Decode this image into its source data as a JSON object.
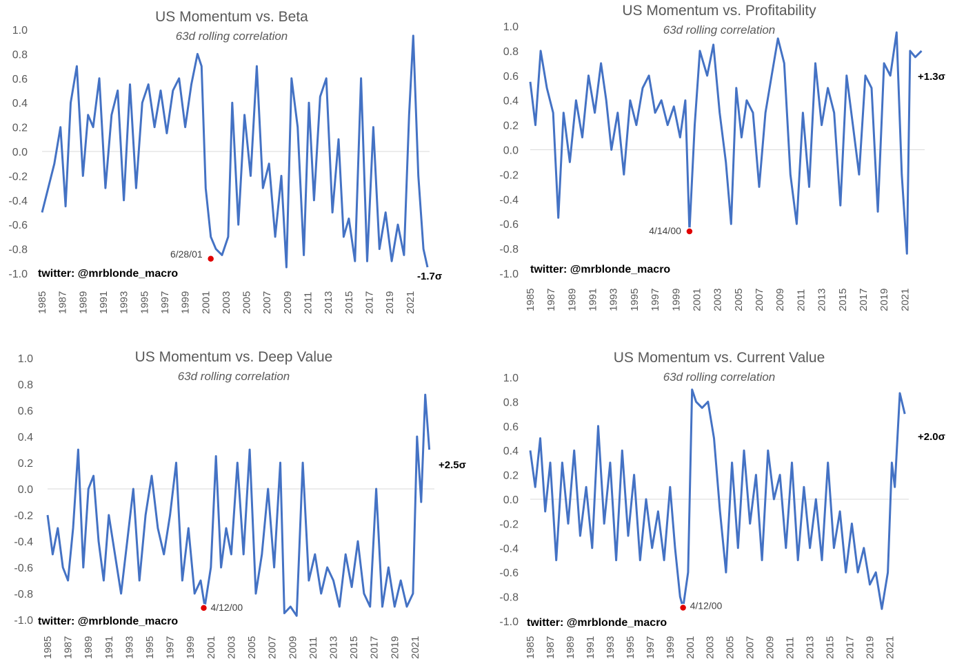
{
  "chart_data": [
    {
      "type": "line",
      "title": "US Momentum vs. Beta",
      "subtitle": "63d rolling correlation",
      "ylim": [
        -1.0,
        1.0
      ],
      "yticks": [
        "1.0",
        "0.8",
        "0.6",
        "0.4",
        "0.2",
        "0.0",
        "-0.2",
        "-0.4",
        "-0.6",
        "-0.8",
        "-1.0"
      ],
      "xlim": [
        1985,
        2022.9
      ],
      "xticks": [
        "1985",
        "1987",
        "1989",
        "1991",
        "1993",
        "1995",
        "1997",
        "1999",
        "2001",
        "2003",
        "2005",
        "2007",
        "2009",
        "2011",
        "2013",
        "2015",
        "2017",
        "2019",
        "2021"
      ],
      "series": [
        {
          "x": [
            1985,
            1985.6,
            1986.2,
            1986.8,
            1987.3,
            1987.8,
            1988.4,
            1989,
            1989.5,
            1990,
            1990.6,
            1991.2,
            1991.8,
            1992.4,
            1993,
            1993.6,
            1994.2,
            1994.8,
            1995.4,
            1996,
            1996.6,
            1997.2,
            1997.8,
            1998.4,
            1999,
            1999.6,
            2000.2,
            2000.6,
            2001,
            2001.5,
            2002,
            2002.6,
            2003.2,
            2003.6,
            2004.2,
            2004.8,
            2005.4,
            2006,
            2006.6,
            2007.2,
            2007.8,
            2008.4,
            2008.9,
            2009.4,
            2010,
            2010.6,
            2011.1,
            2011.6,
            2012.2,
            2012.8,
            2013.4,
            2014,
            2014.5,
            2015,
            2015.6,
            2016.2,
            2016.8,
            2017.4,
            2018,
            2018.6,
            2019.2,
            2019.8,
            2020.4,
            2020.9,
            2021.3,
            2021.8,
            2022.3,
            2022.7
          ],
          "y": [
            -0.5,
            -0.3,
            -0.1,
            0.2,
            -0.45,
            0.4,
            0.7,
            -0.2,
            0.3,
            0.2,
            0.6,
            -0.3,
            0.3,
            0.5,
            -0.4,
            0.55,
            -0.3,
            0.4,
            0.55,
            0.2,
            0.5,
            0.15,
            0.5,
            0.6,
            0.2,
            0.55,
            0.8,
            0.7,
            -0.3,
            -0.7,
            -0.8,
            -0.85,
            -0.7,
            0.4,
            -0.6,
            0.3,
            -0.2,
            0.7,
            -0.3,
            -0.1,
            -0.7,
            -0.2,
            -0.95,
            0.6,
            0.2,
            -0.85,
            0.4,
            -0.4,
            0.45,
            0.6,
            -0.5,
            0.1,
            -0.7,
            -0.55,
            -0.9,
            0.6,
            -0.9,
            0.2,
            -0.8,
            -0.5,
            -0.9,
            -0.6,
            -0.85,
            0.3,
            0.95,
            -0.2,
            -0.8,
            -0.95
          ],
          "marker": {
            "x": 2001.5,
            "y": -0.88,
            "label": "6/28/01"
          }
        }
      ],
      "sigma": "-1.7σ",
      "twitter": "twitter: @mrblonde_macro"
    },
    {
      "type": "line",
      "title": "US Momentum vs. Profitability",
      "subtitle": "63d rolling correlation",
      "ylim": [
        -1.0,
        1.0
      ],
      "yticks": [
        "1.0",
        "0.8",
        "0.6",
        "0.4",
        "0.2",
        "0.0",
        "-0.2",
        "-0.4",
        "-0.6",
        "-0.8",
        "-1.0"
      ],
      "xlim": [
        1985,
        2022.9
      ],
      "xticks": [
        "1985",
        "1987",
        "1989",
        "1991",
        "1993",
        "1995",
        "1997",
        "1999",
        "2001",
        "2003",
        "2005",
        "2007",
        "2009",
        "2011",
        "2013",
        "2015",
        "2017",
        "2019",
        "2021"
      ],
      "series": [
        {
          "x": [
            1985,
            1985.5,
            1986,
            1986.6,
            1987.2,
            1987.7,
            1988.2,
            1988.8,
            1989.4,
            1990,
            1990.6,
            1991.2,
            1991.8,
            1992.3,
            1992.8,
            1993.4,
            1994,
            1994.6,
            1995.2,
            1995.8,
            1996.4,
            1997,
            1997.6,
            1998.2,
            1998.8,
            1999.4,
            1999.9,
            2000.3,
            2000.8,
            2001.3,
            2002,
            2002.6,
            2003.2,
            2003.8,
            2004.3,
            2004.8,
            2005.3,
            2005.8,
            2006.4,
            2007,
            2007.6,
            2008.2,
            2008.8,
            2009.4,
            2010,
            2010.6,
            2011.2,
            2011.8,
            2012.4,
            2013,
            2013.6,
            2014.2,
            2014.8,
            2015.4,
            2016,
            2016.6,
            2017.2,
            2017.8,
            2018.4,
            2019,
            2019.6,
            2020.2,
            2020.7,
            2021.2,
            2021.5,
            2022,
            2022.6
          ],
          "y": [
            0.55,
            0.2,
            0.8,
            0.5,
            0.3,
            -0.55,
            0.3,
            -0.1,
            0.4,
            0.1,
            0.6,
            0.3,
            0.7,
            0.4,
            0.0,
            0.3,
            -0.2,
            0.4,
            0.2,
            0.5,
            0.6,
            0.3,
            0.4,
            0.2,
            0.35,
            0.1,
            0.4,
            -0.66,
            0.2,
            0.8,
            0.6,
            0.85,
            0.3,
            -0.1,
            -0.6,
            0.5,
            0.1,
            0.4,
            0.3,
            -0.3,
            0.3,
            0.6,
            0.9,
            0.7,
            -0.2,
            -0.6,
            0.3,
            -0.3,
            0.7,
            0.2,
            0.5,
            0.3,
            -0.45,
            0.6,
            0.2,
            -0.2,
            0.6,
            0.5,
            -0.5,
            0.7,
            0.6,
            0.95,
            -0.2,
            -0.84,
            0.8,
            0.75,
            0.8
          ],
          "marker": {
            "x": 2000.3,
            "y": -0.66,
            "label": "4/14/00"
          }
        }
      ],
      "sigma": "+1.3σ",
      "twitter": "twitter: @mrblonde_macro"
    },
    {
      "type": "line",
      "title": "US Momentum vs. Deep Value",
      "subtitle": "63d rolling correlation",
      "ylim": [
        -1.0,
        1.0
      ],
      "yticks": [
        "1.0",
        "0.8",
        "0.6",
        "0.4",
        "0.2",
        "0.0",
        "-0.2",
        "-0.4",
        "-0.6",
        "-0.8",
        "-1.0"
      ],
      "xlim": [
        1985,
        2022.9
      ],
      "xticks": [
        "1985",
        "1987",
        "1989",
        "1991",
        "1993",
        "1995",
        "1997",
        "1999",
        "2001",
        "2003",
        "2005",
        "2007",
        "2009",
        "2011",
        "2013",
        "2015",
        "2017",
        "2019",
        "2021"
      ],
      "series": [
        {
          "x": [
            1985,
            1985.5,
            1986,
            1986.5,
            1987,
            1987.5,
            1988,
            1988.5,
            1989,
            1989.5,
            1990,
            1990.5,
            1991,
            1991.6,
            1992.2,
            1992.8,
            1993.4,
            1994,
            1994.6,
            1995.2,
            1995.8,
            1996.4,
            1997,
            1997.6,
            1998.2,
            1998.8,
            1999.4,
            2000,
            2000.4,
            2001,
            2001.5,
            2002,
            2002.5,
            2003,
            2003.6,
            2004.2,
            2004.8,
            2005.4,
            2006,
            2006.6,
            2007.2,
            2007.8,
            2008.2,
            2008.8,
            2009.4,
            2010,
            2010.6,
            2011.2,
            2011.8,
            2012.4,
            2013,
            2013.6,
            2014.2,
            2014.8,
            2015.4,
            2016,
            2016.6,
            2017.2,
            2017.8,
            2018.4,
            2019,
            2019.6,
            2020.2,
            2020.8,
            2021.2,
            2021.6,
            2022,
            2022.4
          ],
          "y": [
            -0.2,
            -0.5,
            -0.3,
            -0.6,
            -0.7,
            -0.3,
            0.3,
            -0.6,
            0.0,
            0.1,
            -0.4,
            -0.7,
            -0.2,
            -0.5,
            -0.8,
            -0.4,
            0.0,
            -0.7,
            -0.2,
            0.1,
            -0.3,
            -0.5,
            -0.2,
            0.2,
            -0.7,
            -0.3,
            -0.8,
            -0.7,
            -0.9,
            -0.6,
            0.25,
            -0.6,
            -0.3,
            -0.5,
            0.2,
            -0.5,
            0.3,
            -0.8,
            -0.5,
            0.0,
            -0.6,
            0.2,
            -0.95,
            -0.9,
            -0.97,
            0.2,
            -0.7,
            -0.5,
            -0.8,
            -0.6,
            -0.7,
            -0.9,
            -0.5,
            -0.75,
            -0.4,
            -0.8,
            -0.9,
            0.0,
            -0.9,
            -0.6,
            -0.9,
            -0.7,
            -0.9,
            -0.8,
            0.4,
            -0.1,
            0.72,
            0.3
          ],
          "marker": {
            "x": 2000.3,
            "y": -0.91,
            "label": "4/12/00"
          }
        }
      ],
      "sigma": "+2.5σ",
      "twitter": "twitter: @mrblonde_macro"
    },
    {
      "type": "line",
      "title": "US Momentum vs. Current Value",
      "subtitle": "63d rolling correlation",
      "ylim": [
        -1.0,
        1.0
      ],
      "yticks": [
        "1.0",
        "0.8",
        "0.6",
        "0.4",
        "0.2",
        "0.0",
        "-0.2",
        "-0.4",
        "-0.6",
        "-0.8",
        "-1.0"
      ],
      "xlim": [
        1985,
        2022.9
      ],
      "xticks": [
        "1985",
        "1987",
        "1989",
        "1991",
        "1993",
        "1995",
        "1997",
        "1999",
        "2001",
        "2003",
        "2005",
        "2007",
        "2009",
        "2011",
        "2013",
        "2015",
        "2017",
        "2019",
        "2021"
      ],
      "series": [
        {
          "x": [
            1985,
            1985.5,
            1986,
            1986.5,
            1987,
            1987.6,
            1988.2,
            1988.8,
            1989.4,
            1990,
            1990.6,
            1991.2,
            1991.8,
            1992.4,
            1993,
            1993.6,
            1994.2,
            1994.8,
            1995.4,
            1996,
            1996.6,
            1997.2,
            1997.8,
            1998.4,
            1999,
            1999.5,
            2000,
            2000.3,
            2000.8,
            2001.2,
            2001.6,
            2002.2,
            2002.8,
            2003.4,
            2004,
            2004.6,
            2005.2,
            2005.8,
            2006.4,
            2007,
            2007.6,
            2008.2,
            2008.8,
            2009.4,
            2010,
            2010.6,
            2011.2,
            2011.8,
            2012.4,
            2013,
            2013.6,
            2014.2,
            2014.8,
            2015.4,
            2016,
            2016.6,
            2017.2,
            2017.8,
            2018.4,
            2019,
            2019.6,
            2020.2,
            2020.8,
            2021.2,
            2021.5,
            2022,
            2022.5
          ],
          "y": [
            0.4,
            0.1,
            0.5,
            -0.1,
            0.3,
            -0.5,
            0.3,
            -0.2,
            0.4,
            -0.3,
            0.1,
            -0.4,
            0.6,
            -0.2,
            0.3,
            -0.5,
            0.4,
            -0.3,
            0.2,
            -0.5,
            0.0,
            -0.4,
            -0.1,
            -0.5,
            0.1,
            -0.4,
            -0.8,
            -0.89,
            -0.6,
            0.9,
            0.8,
            0.75,
            0.8,
            0.5,
            -0.1,
            -0.6,
            0.3,
            -0.4,
            0.4,
            -0.2,
            0.2,
            -0.5,
            0.4,
            0.0,
            0.2,
            -0.4,
            0.3,
            -0.5,
            0.1,
            -0.4,
            0.0,
            -0.5,
            0.3,
            -0.4,
            -0.1,
            -0.6,
            -0.2,
            -0.6,
            -0.4,
            -0.7,
            -0.6,
            -0.9,
            -0.6,
            0.3,
            0.1,
            0.87,
            0.7
          ],
          "marker": {
            "x": 2000.3,
            "y": -0.89,
            "label": "4/12/00"
          }
        }
      ],
      "sigma": "+2.0σ",
      "twitter": "twitter: @mrblonde_macro"
    }
  ]
}
